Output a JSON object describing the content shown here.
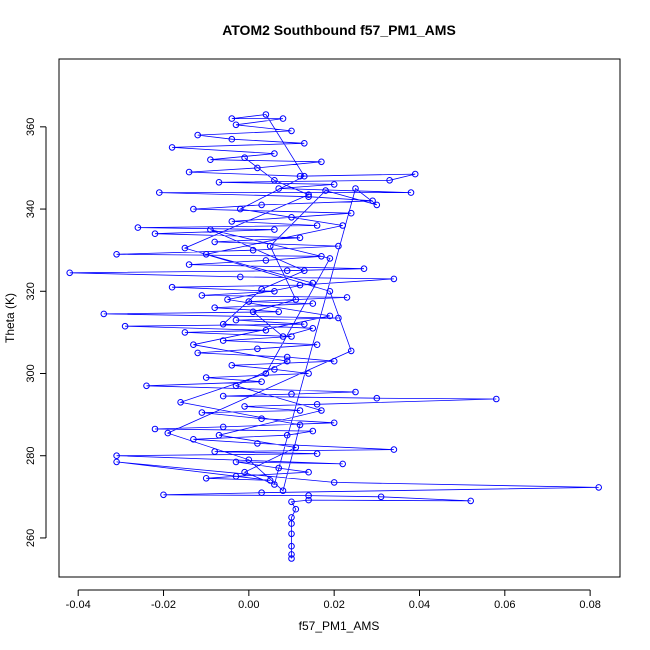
{
  "chart_data": {
    "type": "scatter",
    "title": "ATOM2 Southbound f57_PM1_AMS",
    "xlabel": "f57_PM1_AMS",
    "ylabel": "Theta (K)",
    "xlim": [
      -0.0445,
      0.087
    ],
    "ylim": [
      250.5,
      376.5
    ],
    "xticks": [
      "-0.04",
      "-0.02",
      "0.00",
      "0.02",
      "0.04",
      "0.06",
      "0.08"
    ],
    "xtick_values": [
      -0.04,
      -0.02,
      0.0,
      0.02,
      0.04,
      0.06,
      0.08
    ],
    "yticks": [
      "260",
      "280",
      "300",
      "320",
      "340",
      "360"
    ],
    "ytick_values": [
      260,
      280,
      300,
      320,
      340,
      360
    ],
    "series_color": "#0000ff",
    "series": [
      {
        "name": "f57_PM1_AMS",
        "points": [
          [
            0.01,
            255.0
          ],
          [
            0.01,
            256.0
          ],
          [
            0.01,
            258.0
          ],
          [
            0.01,
            261.0
          ],
          [
            0.01,
            263.5
          ],
          [
            0.01,
            265.0
          ],
          [
            0.011,
            267.0
          ],
          [
            0.01,
            268.8
          ],
          [
            0.014,
            269.2
          ],
          [
            0.052,
            269.0
          ],
          [
            0.031,
            270.0
          ],
          [
            0.014,
            270.3
          ],
          [
            -0.02,
            270.5
          ],
          [
            0.003,
            271.0
          ],
          [
            0.082,
            272.3
          ],
          [
            0.02,
            273.5
          ],
          [
            -0.031,
            278.5
          ],
          [
            0.005,
            274.0
          ],
          [
            -0.01,
            274.5
          ],
          [
            -0.003,
            275.0
          ],
          [
            0.014,
            276.0
          ],
          [
            0.007,
            277.0
          ],
          [
            -0.003,
            278.5
          ],
          [
            0.022,
            278.0
          ],
          [
            -0.031,
            280.0
          ],
          [
            0.016,
            280.5
          ],
          [
            -0.008,
            281.0
          ],
          [
            0.034,
            281.5
          ],
          [
            0.002,
            283.0
          ],
          [
            -0.013,
            284.0
          ],
          [
            0.009,
            285.0
          ],
          [
            0.015,
            286.0
          ],
          [
            -0.022,
            286.5
          ],
          [
            -0.006,
            287.0
          ],
          [
            0.02,
            288.0
          ],
          [
            0.003,
            289.0
          ],
          [
            -0.011,
            290.5
          ],
          [
            0.012,
            291.0
          ],
          [
            -0.001,
            292.0
          ],
          [
            0.016,
            292.5
          ],
          [
            0.058,
            293.8
          ],
          [
            0.03,
            294.0
          ],
          [
            -0.006,
            294.5
          ],
          [
            0.01,
            295.0
          ],
          [
            0.025,
            295.5
          ],
          [
            -0.024,
            297.0
          ],
          [
            0.003,
            298.0
          ],
          [
            -0.01,
            299.0
          ],
          [
            0.014,
            300.0
          ],
          [
            0.006,
            301.0
          ],
          [
            -0.004,
            302.0
          ],
          [
            0.02,
            303.0
          ],
          [
            0.009,
            304.0
          ],
          [
            -0.012,
            305.0
          ],
          [
            0.002,
            306.0
          ],
          [
            0.016,
            307.0
          ],
          [
            -0.006,
            308.0
          ],
          [
            0.01,
            309.0
          ],
          [
            -0.015,
            310.0
          ],
          [
            0.004,
            310.5
          ],
          [
            -0.029,
            311.5
          ],
          [
            0.013,
            312.0
          ],
          [
            -0.003,
            313.0
          ],
          [
            0.021,
            313.5
          ],
          [
            -0.034,
            314.5
          ],
          [
            0.007,
            315.0
          ],
          [
            -0.008,
            316.0
          ],
          [
            0.015,
            317.0
          ],
          [
            0.0,
            317.5
          ],
          [
            0.023,
            318.5
          ],
          [
            -0.011,
            319.0
          ],
          [
            0.006,
            320.0
          ],
          [
            -0.018,
            321.0
          ],
          [
            0.012,
            321.5
          ],
          [
            0.034,
            323.0
          ],
          [
            -0.002,
            323.5
          ],
          [
            -0.042,
            324.5
          ],
          [
            0.009,
            325.0
          ],
          [
            0.027,
            325.5
          ],
          [
            -0.014,
            326.5
          ],
          [
            0.004,
            327.5
          ],
          [
            0.017,
            328.5
          ],
          [
            -0.031,
            329.0
          ],
          [
            0.001,
            330.0
          ],
          [
            0.021,
            331.0
          ],
          [
            -0.008,
            332.0
          ],
          [
            0.012,
            333.0
          ],
          [
            -0.022,
            334.0
          ],
          [
            0.006,
            335.0
          ],
          [
            -0.026,
            335.5
          ],
          [
            0.016,
            336.0
          ],
          [
            -0.004,
            337.0
          ],
          [
            0.01,
            338.0
          ],
          [
            0.024,
            339.0
          ],
          [
            -0.013,
            340.0
          ],
          [
            0.003,
            341.0
          ],
          [
            0.029,
            342.0
          ],
          [
            0.014,
            343.0
          ],
          [
            -0.021,
            344.0
          ],
          [
            0.038,
            344.0
          ],
          [
            0.007,
            345.0
          ],
          [
            0.02,
            346.0
          ],
          [
            -0.007,
            346.5
          ],
          [
            0.033,
            347.0
          ],
          [
            0.039,
            348.5
          ],
          [
            0.012,
            348.0
          ],
          [
            -0.014,
            349.0
          ],
          [
            0.002,
            350.0
          ],
          [
            0.017,
            351.5
          ],
          [
            -0.009,
            352.0
          ],
          [
            0.006,
            353.5
          ],
          [
            -0.018,
            355.0
          ],
          [
            0.013,
            356.0
          ],
          [
            -0.004,
            357.0
          ],
          [
            -0.012,
            358.0
          ],
          [
            0.01,
            359.0
          ],
          [
            -0.003,
            360.5
          ],
          [
            0.008,
            362.0
          ],
          [
            -0.004,
            362.0
          ],
          [
            0.004,
            363.0
          ],
          [
            0.013,
            348.0
          ],
          [
            -0.002,
            340.0
          ],
          [
            0.022,
            336.0
          ],
          [
            -0.01,
            329.0
          ],
          [
            0.015,
            322.0
          ],
          [
            -0.005,
            318.0
          ],
          [
            0.019,
            314.0
          ],
          [
            -0.013,
            307.0
          ],
          [
            0.009,
            303.0
          ],
          [
            -0.003,
            297.0
          ],
          [
            0.017,
            291.0
          ],
          [
            -0.007,
            285.0
          ],
          [
            0.011,
            282.0
          ],
          [
            -0.001,
            276.0
          ],
          [
            0.006,
            273.0
          ],
          [
            0.025,
            345.0
          ],
          [
            0.03,
            341.0
          ],
          [
            0.018,
            344.5
          ],
          [
            0.005,
            331.0
          ],
          [
            0.011,
            318.0
          ],
          [
            0.001,
            315.0
          ],
          [
            0.008,
            309.0
          ],
          [
            0.015,
            311.0
          ],
          [
            -0.006,
            312.0
          ],
          [
            0.003,
            320.5
          ],
          [
            0.013,
            325.0
          ],
          [
            -0.009,
            335.0
          ],
          [
            0.019,
            328.0
          ],
          [
            0.004,
            300.0
          ],
          [
            -0.016,
            293.0
          ],
          [
            0.012,
            287.5
          ],
          [
            0.008,
            271.5
          ],
          [
            0.0,
            279.0
          ],
          [
            -0.019,
            285.5
          ],
          [
            0.024,
            305.5
          ],
          [
            0.019,
            320.0
          ],
          [
            -0.015,
            330.5
          ],
          [
            0.014,
            343.5
          ],
          [
            0.006,
            347.0
          ],
          [
            -0.001,
            352.5
          ]
        ]
      }
    ]
  }
}
